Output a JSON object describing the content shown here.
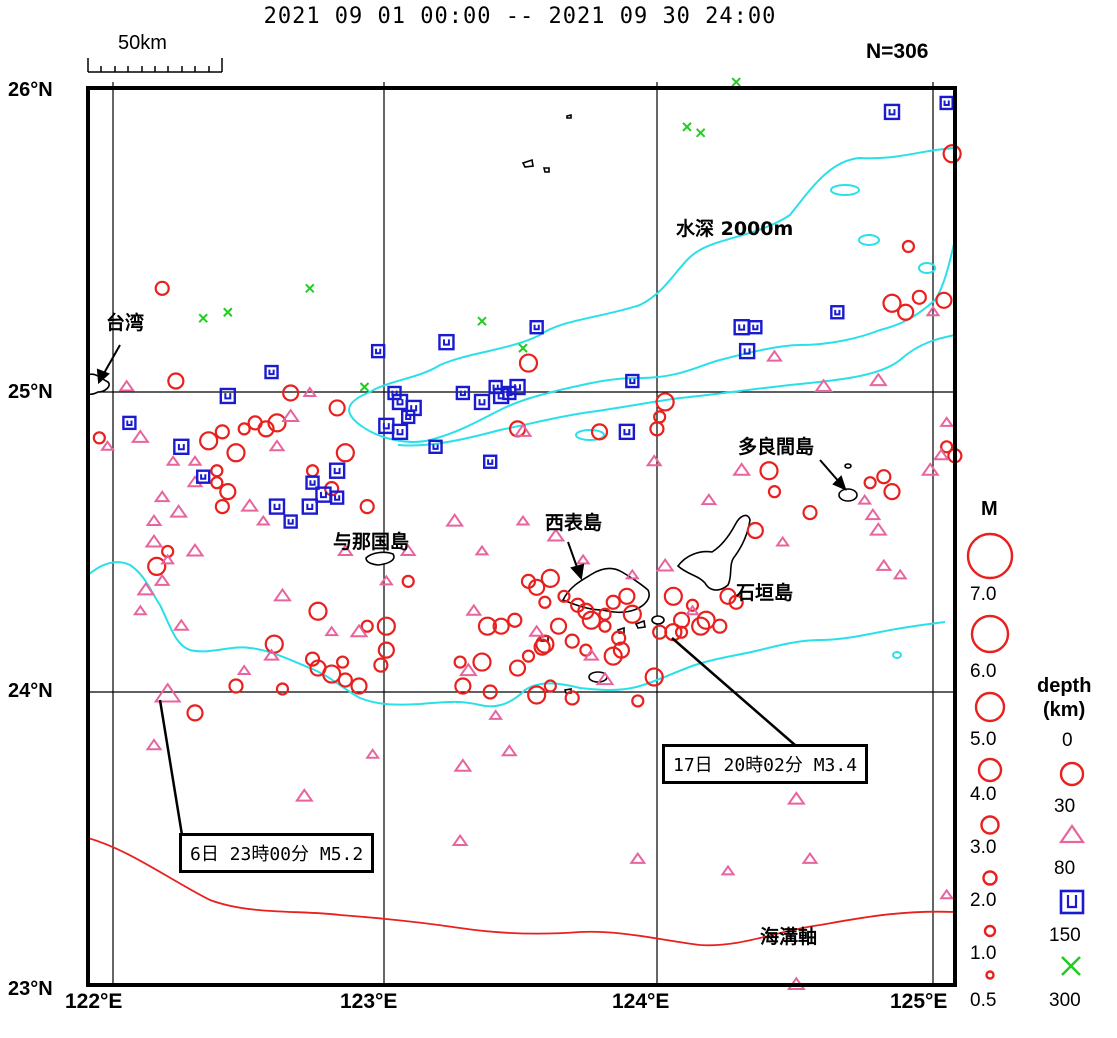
{
  "header": {
    "period": "2021 09 01 00:00 -- 2021 09 30 24:00",
    "count": "N=306",
    "scale_label": "50km"
  },
  "axes": {
    "lat_labels": [
      "26°N",
      "25°N",
      "24°N",
      "23°N"
    ],
    "lon_labels": [
      "122°E",
      "123°E",
      "124°E",
      "125°E"
    ],
    "lon_range": [
      122,
      125
    ],
    "lat_range": [
      23,
      26
    ]
  },
  "places": {
    "taiwan": "台湾",
    "yonaguni": "与那国島",
    "iriomote": "西表島",
    "ishigaki": "石垣島",
    "tarama": "多良間島",
    "depth_contour": "水深 2000m",
    "trench_axis": "海溝軸"
  },
  "callouts": {
    "event_6": "6日 23時00分 M5.2",
    "event_17": "17日 20時02分 M3.4"
  },
  "legend": {
    "magnitude_title": "M",
    "magnitudes": [
      "7.0",
      "6.0",
      "5.0",
      "4.0",
      "3.0",
      "2.0",
      "1.0",
      "0.5"
    ],
    "depth_title_1": "depth",
    "depth_title_2": "(km)",
    "depths": [
      "0",
      "30",
      "80",
      "150",
      "300"
    ]
  },
  "colors": {
    "shallow": "#e8201e",
    "mid": "#e8649e",
    "deep": "#1a1ad0",
    "deepest": "#22cc22",
    "bathymetry": "#2ae0e8",
    "trench": "#e8201e"
  },
  "map_data": {
    "highlighted_events": [
      {
        "day": 6,
        "time": "23:00",
        "mag": 5.2,
        "lon": 122.2,
        "lat": 23.97,
        "depth_class": "30-80"
      },
      {
        "day": 17,
        "time": "20:02",
        "mag": 3.4,
        "lon": 124.05,
        "lat": 24.18,
        "depth_class": "0-30"
      }
    ],
    "events_shallow": [
      [
        121.95,
        24.83
      ],
      [
        122.18,
        25.33
      ],
      [
        122.23,
        25.02
      ],
      [
        122.35,
        24.82
      ],
      [
        122.38,
        24.72
      ],
      [
        122.4,
        24.85
      ],
      [
        122.42,
        24.65
      ],
      [
        122.45,
        24.78
      ],
      [
        122.48,
        24.86
      ],
      [
        122.52,
        24.88
      ],
      [
        122.56,
        24.86
      ],
      [
        122.6,
        24.88
      ],
      [
        122.38,
        24.68
      ],
      [
        122.4,
        24.6
      ],
      [
        122.82,
        24.93
      ],
      [
        122.85,
        24.78
      ],
      [
        122.73,
        24.72
      ],
      [
        122.8,
        24.66
      ],
      [
        122.65,
        24.98
      ],
      [
        122.16,
        24.4
      ],
      [
        122.2,
        24.45
      ],
      [
        122.45,
        24.0
      ],
      [
        122.3,
        23.91
      ],
      [
        122.59,
        24.14
      ],
      [
        122.62,
        23.99
      ],
      [
        122.73,
        24.09
      ],
      [
        122.75,
        24.06
      ],
      [
        122.8,
        24.04
      ],
      [
        122.84,
        24.08
      ],
      [
        122.85,
        24.02
      ],
      [
        122.9,
        24.0
      ],
      [
        122.75,
        24.25
      ],
      [
        122.93,
        24.2
      ],
      [
        122.98,
        24.07
      ],
      [
        123.48,
        24.86
      ],
      [
        123.52,
        25.08
      ],
      [
        123.58,
        24.28
      ],
      [
        123.52,
        24.35
      ],
      [
        123.55,
        24.33
      ],
      [
        123.6,
        24.36
      ],
      [
        123.65,
        24.3
      ],
      [
        123.7,
        24.27
      ],
      [
        123.73,
        24.25
      ],
      [
        123.75,
        24.22
      ],
      [
        123.8,
        24.24
      ],
      [
        123.83,
        24.28
      ],
      [
        123.88,
        24.3
      ],
      [
        123.9,
        24.24
      ],
      [
        123.8,
        24.2
      ],
      [
        123.85,
        24.16
      ],
      [
        123.86,
        24.12
      ],
      [
        123.83,
        24.1
      ],
      [
        123.73,
        24.12
      ],
      [
        123.68,
        24.15
      ],
      [
        123.63,
        24.2
      ],
      [
        123.58,
        24.14
      ],
      [
        123.52,
        24.1
      ],
      [
        123.47,
        24.22
      ],
      [
        123.42,
        24.2
      ],
      [
        123.37,
        24.2
      ],
      [
        123.27,
        24.08
      ],
      [
        123.38,
        23.98
      ],
      [
        123.48,
        24.06
      ],
      [
        123.55,
        23.97
      ],
      [
        123.6,
        24.0
      ],
      [
        123.68,
        23.96
      ],
      [
        123.57,
        24.13
      ],
      [
        124.02,
        24.95
      ],
      [
        124.0,
        24.9
      ],
      [
        123.99,
        24.86
      ],
      [
        123.78,
        24.85
      ],
      [
        124.05,
        24.3
      ],
      [
        124.12,
        24.27
      ],
      [
        124.22,
        24.2
      ],
      [
        124.25,
        24.3
      ],
      [
        124.17,
        24.22
      ],
      [
        124.08,
        24.18
      ],
      [
        124.28,
        24.28
      ],
      [
        124.35,
        24.52
      ],
      [
        124.4,
        24.72
      ],
      [
        124.42,
        24.65
      ],
      [
        124.55,
        24.58
      ],
      [
        123.0,
        24.12
      ],
      [
        123.0,
        24.2
      ],
      [
        123.08,
        24.35
      ],
      [
        122.93,
        24.6
      ],
      [
        123.28,
        24.0
      ],
      [
        123.35,
        24.08
      ],
      [
        124.77,
        24.68
      ],
      [
        124.82,
        24.7
      ],
      [
        124.85,
        24.65
      ],
      [
        124.85,
        25.28
      ],
      [
        124.91,
        25.47
      ],
      [
        124.95,
        25.3
      ],
      [
        125.04,
        25.29
      ],
      [
        125.07,
        25.78
      ],
      [
        125.05,
        24.8
      ],
      [
        125.08,
        24.77
      ],
      [
        124.9,
        25.25
      ],
      [
        123.98,
        24.03
      ],
      [
        123.92,
        23.95
      ],
      [
        124.0,
        24.18
      ],
      [
        124.08,
        24.22
      ],
      [
        124.15,
        24.2
      ]
    ],
    "events_mid": [
      [
        121.98,
        24.8
      ],
      [
        122.05,
        25.0
      ],
      [
        122.1,
        24.83
      ],
      [
        122.22,
        24.75
      ],
      [
        122.18,
        24.63
      ],
      [
        122.24,
        24.58
      ],
      [
        122.3,
        24.75
      ],
      [
        122.3,
        24.68
      ],
      [
        122.5,
        24.6
      ],
      [
        122.55,
        24.55
      ],
      [
        122.6,
        24.8
      ],
      [
        122.65,
        24.9
      ],
      [
        122.72,
        24.98
      ],
      [
        122.15,
        24.55
      ],
      [
        122.15,
        24.48
      ],
      [
        122.2,
        24.42
      ],
      [
        122.18,
        24.35
      ],
      [
        122.12,
        24.32
      ],
      [
        122.1,
        24.25
      ],
      [
        122.25,
        24.2
      ],
      [
        122.3,
        24.45
      ],
      [
        122.48,
        24.05
      ],
      [
        122.58,
        24.1
      ],
      [
        122.62,
        24.3
      ],
      [
        122.8,
        24.18
      ],
      [
        122.85,
        24.45
      ],
      [
        122.9,
        24.18
      ],
      [
        123.0,
        24.35
      ],
      [
        122.15,
        23.8
      ],
      [
        122.7,
        23.63
      ],
      [
        122.95,
        23.77
      ],
      [
        123.08,
        24.45
      ],
      [
        123.25,
        24.55
      ],
      [
        123.35,
        24.45
      ],
      [
        123.32,
        24.25
      ],
      [
        123.3,
        24.05
      ],
      [
        123.4,
        23.9
      ],
      [
        123.45,
        23.78
      ],
      [
        123.28,
        23.73
      ],
      [
        123.5,
        24.55
      ],
      [
        123.55,
        24.18
      ],
      [
        123.62,
        24.5
      ],
      [
        123.72,
        24.42
      ],
      [
        123.75,
        24.1
      ],
      [
        123.8,
        24.02
      ],
      [
        123.9,
        24.37
      ],
      [
        123.98,
        24.75
      ],
      [
        124.02,
        24.4
      ],
      [
        124.12,
        24.25
      ],
      [
        124.18,
        24.62
      ],
      [
        124.3,
        24.72
      ],
      [
        124.45,
        24.48
      ],
      [
        124.42,
        25.1
      ],
      [
        124.6,
        25.0
      ],
      [
        124.75,
        24.62
      ],
      [
        124.78,
        24.57
      ],
      [
        124.8,
        24.52
      ],
      [
        124.88,
        24.37
      ],
      [
        124.82,
        24.4
      ],
      [
        124.8,
        25.02
      ],
      [
        125.05,
        24.88
      ],
      [
        125.03,
        24.77
      ],
      [
        124.99,
        24.72
      ],
      [
        125.0,
        25.25
      ],
      [
        124.55,
        23.42
      ],
      [
        124.5,
        23.62
      ],
      [
        124.25,
        23.38
      ],
      [
        123.92,
        23.42
      ],
      [
        124.5,
        23.0
      ],
      [
        125.05,
        23.3
      ],
      [
        123.27,
        23.48
      ],
      [
        123.5,
        24.85
      ]
    ],
    "events_deep": [
      [
        122.06,
        24.88
      ],
      [
        122.25,
        24.8
      ],
      [
        122.33,
        24.7
      ],
      [
        122.42,
        24.97
      ],
      [
        122.58,
        25.05
      ],
      [
        122.82,
        24.72
      ],
      [
        122.73,
        24.68
      ],
      [
        122.77,
        24.64
      ],
      [
        122.82,
        24.63
      ],
      [
        122.72,
        24.6
      ],
      [
        122.65,
        24.55
      ],
      [
        122.6,
        24.6
      ],
      [
        122.97,
        25.12
      ],
      [
        123.0,
        24.87
      ],
      [
        123.03,
        24.98
      ],
      [
        123.05,
        24.95
      ],
      [
        123.08,
        24.9
      ],
      [
        123.1,
        24.93
      ],
      [
        123.18,
        24.8
      ],
      [
        123.22,
        25.15
      ],
      [
        123.28,
        24.98
      ],
      [
        123.35,
        24.95
      ],
      [
        123.4,
        25.0
      ],
      [
        123.42,
        24.97
      ],
      [
        123.45,
        24.98
      ],
      [
        123.48,
        25.0
      ],
      [
        123.38,
        24.75
      ],
      [
        123.05,
        24.85
      ],
      [
        123.55,
        25.2
      ],
      [
        123.88,
        24.85
      ],
      [
        123.9,
        25.02
      ],
      [
        124.3,
        25.2
      ],
      [
        124.35,
        25.2
      ],
      [
        124.32,
        25.12
      ],
      [
        124.65,
        25.25
      ],
      [
        124.85,
        25.92
      ],
      [
        125.05,
        25.95
      ]
    ],
    "events_deepest": [
      [
        122.33,
        25.23
      ],
      [
        122.42,
        25.25
      ],
      [
        122.72,
        25.33
      ],
      [
        122.92,
        25.0
      ],
      [
        123.35,
        25.22
      ],
      [
        123.5,
        25.13
      ],
      [
        124.1,
        25.87
      ],
      [
        124.15,
        25.85
      ],
      [
        124.28,
        26.02
      ]
    ],
    "islands": {
      "taiwan": [
        [
          122.0,
          25.04
        ],
        [
          121.97,
          25.01
        ],
        [
          122.06,
          24.99
        ],
        [
          122.1,
          25.02
        ],
        [
          122.04,
          25.06
        ]
      ]
    }
  }
}
